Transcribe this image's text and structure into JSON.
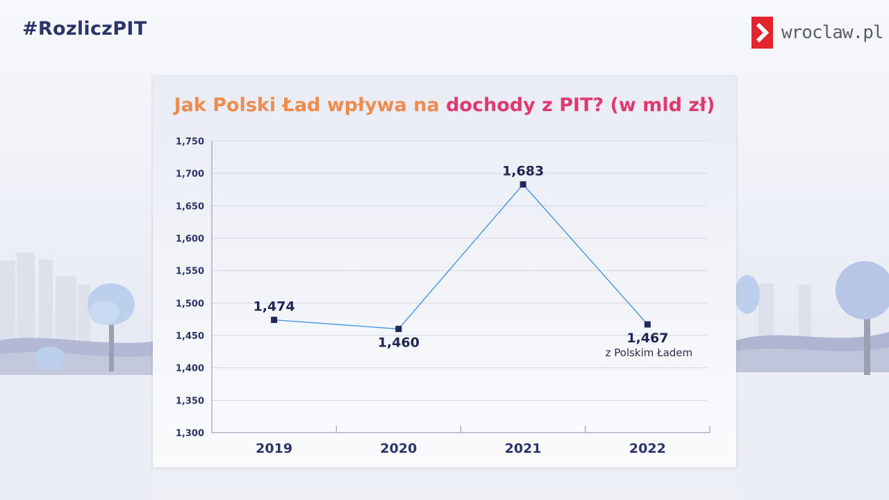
{
  "hashtag": "#RozliczPIT",
  "brand": {
    "name": "wroclaw.pl",
    "color": "#e3242b"
  },
  "chart_data": {
    "type": "line",
    "title_part1": "Jak Polski Ład wpływa na",
    "title_part2": "dochody z PIT? (w mld zł)",
    "title_colors": [
      "#ee8c4f",
      "#e0396e"
    ],
    "categories": [
      "2019",
      "2020",
      "2021",
      "2022"
    ],
    "values": [
      1474,
      1460,
      1683,
      1467
    ],
    "data_labels": [
      "1,474",
      "1,460",
      "1,683",
      "1,467"
    ],
    "annotation": "z Polskim Ładem",
    "ylim": [
      1300,
      1750
    ],
    "y_ticks": [
      1300,
      1350,
      1400,
      1450,
      1500,
      1550,
      1600,
      1650,
      1700,
      1750
    ],
    "y_tick_labels": [
      "1,300",
      "1,350",
      "1,400",
      "1,450",
      "1,500",
      "1,550",
      "1,600",
      "1,650",
      "1,700",
      "1,750"
    ],
    "grid": true,
    "line_color": "#3b8fe0",
    "marker_color": "#23265a"
  }
}
